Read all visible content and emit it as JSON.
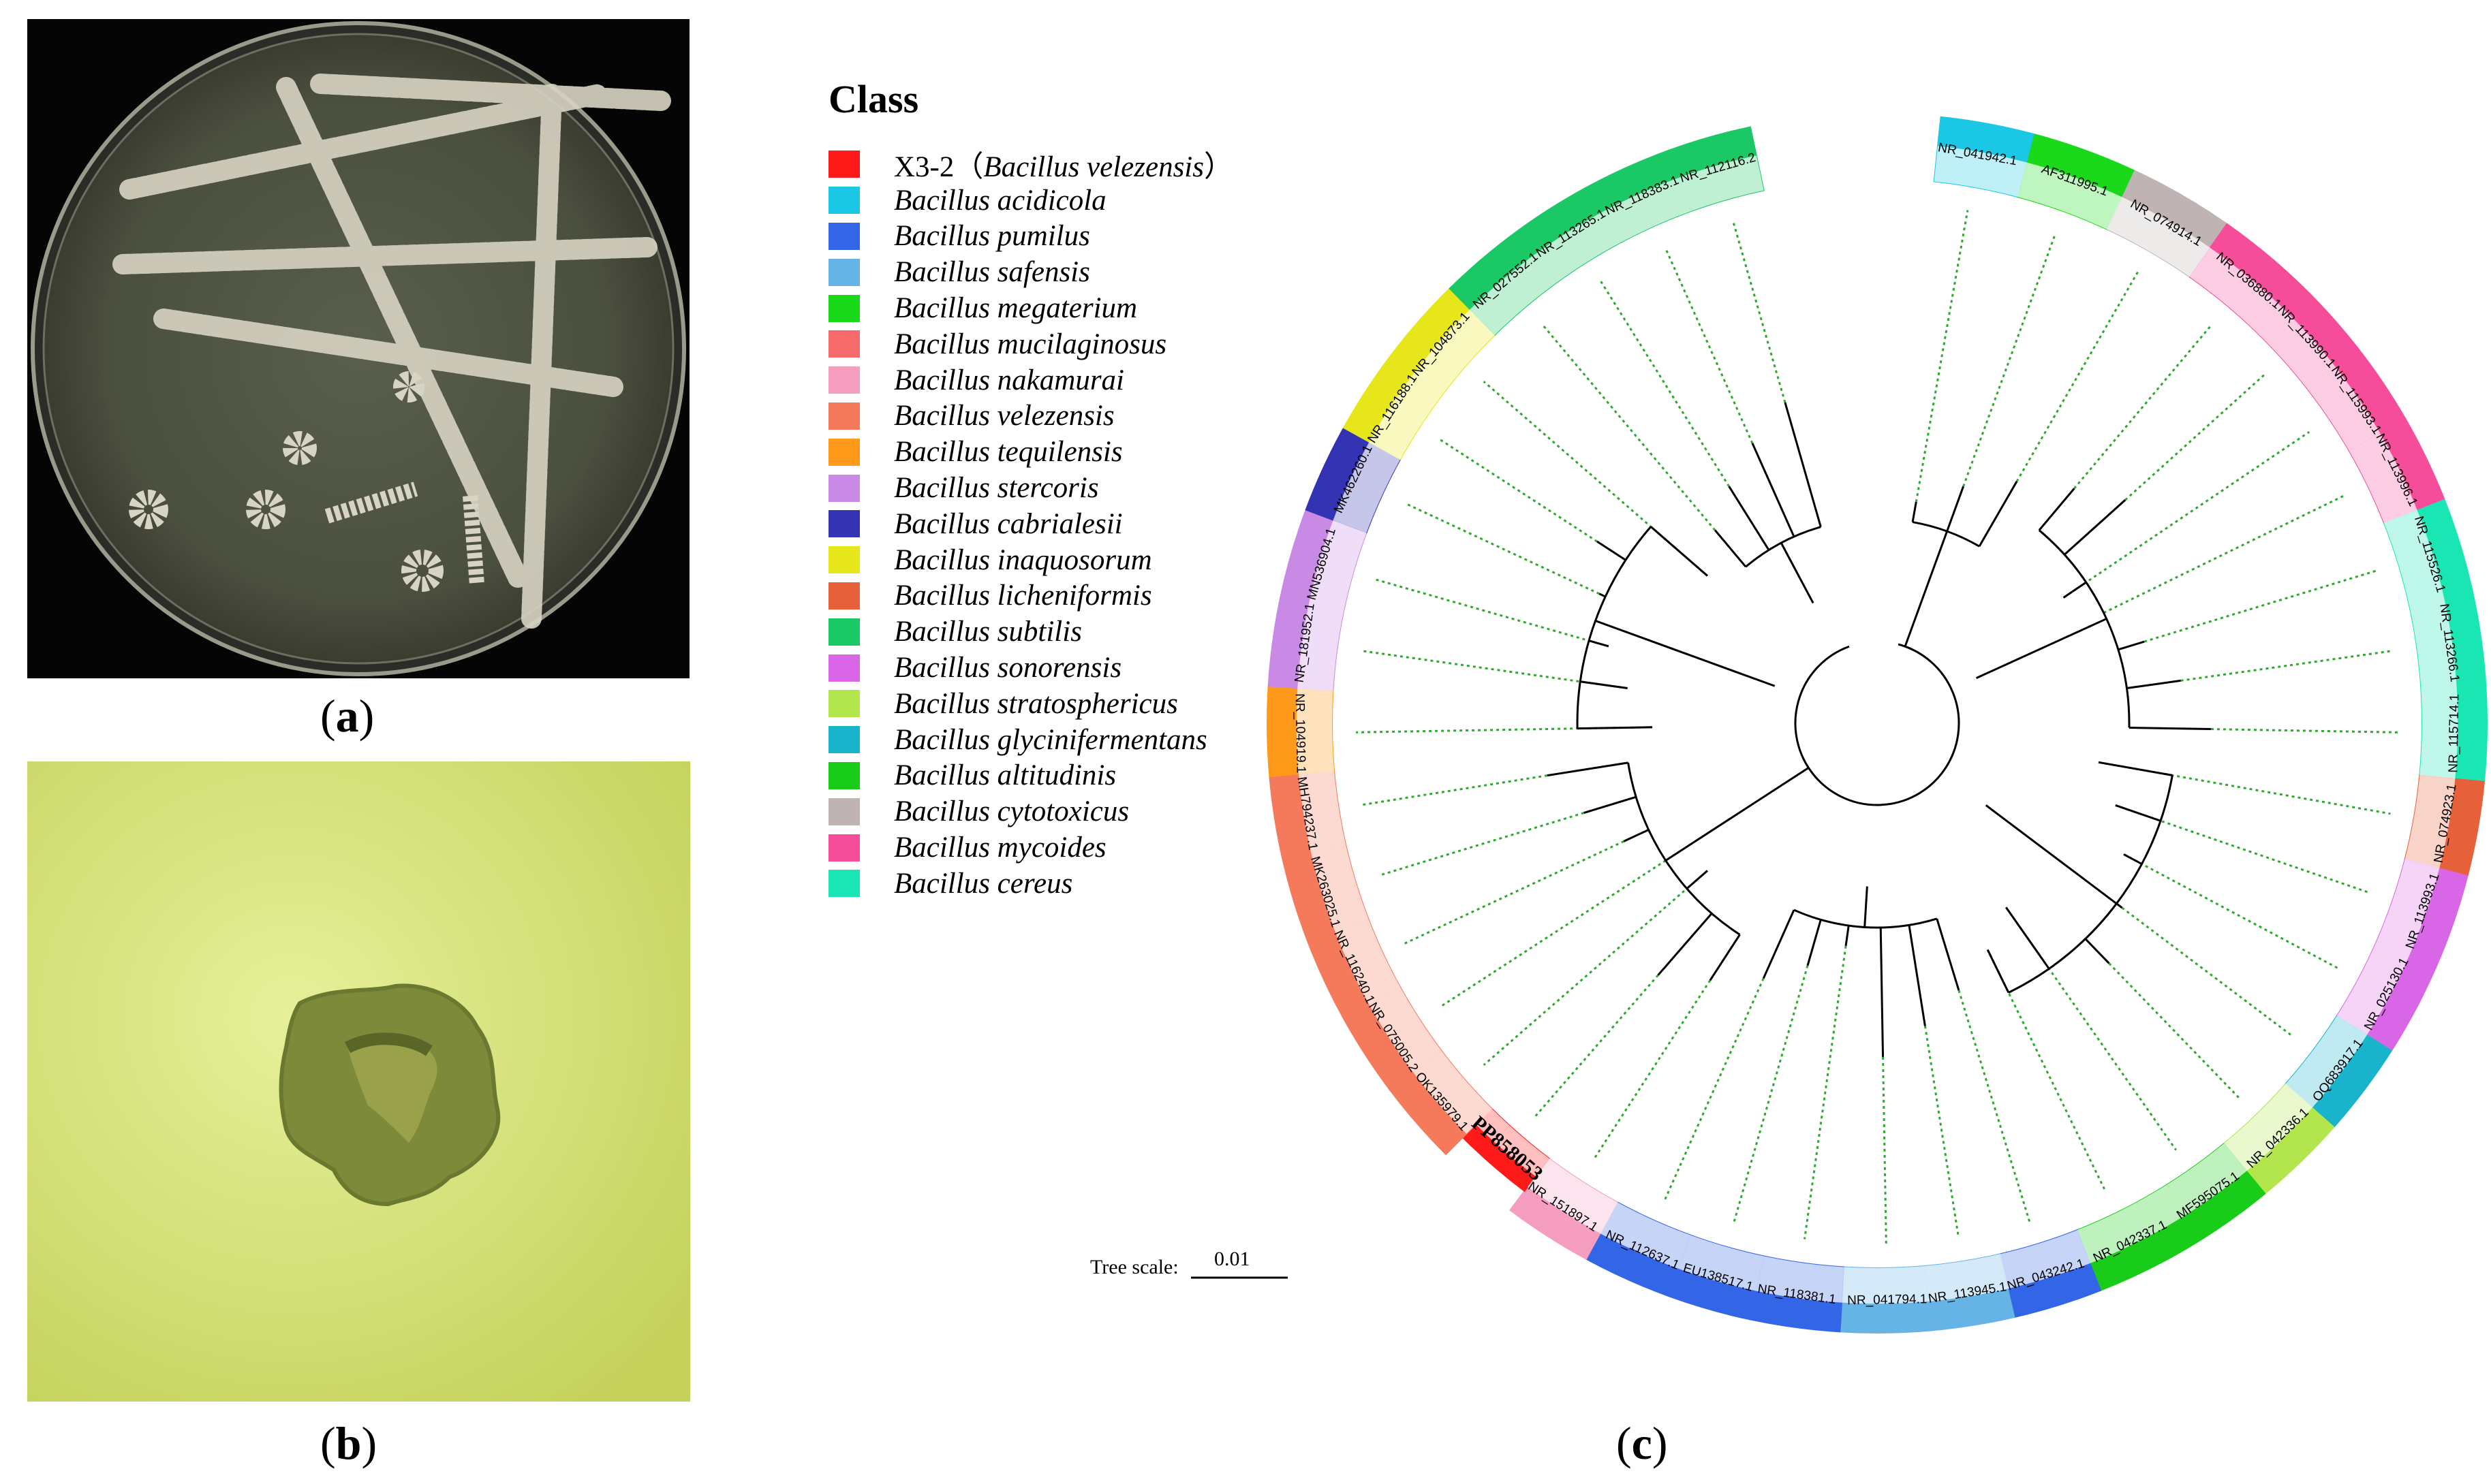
{
  "panels": {
    "a_label": "a",
    "b_label": "b",
    "c_label": "c"
  },
  "legend": {
    "title": "Class",
    "items": [
      {
        "label": "X3-2（",
        "italic_part": "Bacillus velezensis",
        "suffix": "）",
        "color": "#ff1a1a"
      },
      {
        "label": "Bacillus acidicola",
        "color": "#1ac8e6"
      },
      {
        "label": "Bacillus pumilus",
        "color": "#3366e6"
      },
      {
        "label": "Bacillus safensis",
        "color": "#66b3e6"
      },
      {
        "label": "Bacillus megaterium",
        "color": "#1ad91a"
      },
      {
        "label": "Bacillus mucilaginosus",
        "color": "#f56b6b"
      },
      {
        "label": "Bacillus nakamurai",
        "color": "#f59ec0"
      },
      {
        "label": "Bacillus velezensis",
        "color": "#f57a5c"
      },
      {
        "label": "Bacillus tequilensis",
        "color": "#ff9919"
      },
      {
        "label": "Bacillus stercoris",
        "color": "#c98ae6"
      },
      {
        "label": "Bacillus cabrialesii",
        "color": "#3333b3"
      },
      {
        "label": "Bacillus inaquosorum",
        "color": "#e6e61a"
      },
      {
        "label": "Bacillus licheniformis",
        "color": "#e6603a"
      },
      {
        "label": "Bacillus subtilis",
        "color": "#1ac866"
      },
      {
        "label": "Bacillus sonorensis",
        "color": "#d966e6"
      },
      {
        "label": "Bacillus stratosphericus",
        "color": "#b3e64d"
      },
      {
        "label": "Bacillus glycinifermentans",
        "color": "#1ab3cc"
      },
      {
        "label": "Bacillus altitudinis",
        "color": "#1acc1a"
      },
      {
        "label": "Bacillus cytotoxicus",
        "color": "#bfb3b3"
      },
      {
        "label": "Bacillus mycoides",
        "color": "#f54d99"
      },
      {
        "label": "Bacillus cereus",
        "color": "#1ae6b3"
      }
    ]
  },
  "tree": {
    "scale_label": "Tree scale:",
    "scale_value": "0.01",
    "highlight_label": "PP858053",
    "leaves": [
      {
        "label": "NR_041942.1",
        "color": "#1ac8e6",
        "angle": -80
      },
      {
        "label": "AF311995.1",
        "color": "#1ad91a",
        "angle": -70
      },
      {
        "label": "NR_074914.1",
        "color": "#bfb3b3",
        "angle": -60
      },
      {
        "label": "NR_036880.1",
        "color": "#f54d99",
        "angle": -50
      },
      {
        "label": "NR_113990.1",
        "color": "#f54d99",
        "angle": -42
      },
      {
        "label": "NR_115993.1",
        "color": "#f54d99",
        "angle": -34
      },
      {
        "label": "NR_113996.1",
        "color": "#f54d99",
        "angle": -26
      },
      {
        "label": "NR_115526.1",
        "color": "#1ae6b3",
        "angle": -17
      },
      {
        "label": "NR_113266.1",
        "color": "#1ae6b3",
        "angle": -8
      },
      {
        "label": "NR_115714.1",
        "color": "#1ae6b3",
        "angle": 1
      },
      {
        "label": "NR_074923.1",
        "color": "#e6603a",
        "angle": 10
      },
      {
        "label": "NR_113993.1",
        "color": "#d966e6",
        "angle": 19
      },
      {
        "label": "NR_025130.1",
        "color": "#d966e6",
        "angle": 28
      },
      {
        "label": "OQ683917.1",
        "color": "#1ab3cc",
        "angle": 37
      },
      {
        "label": "NR_042336.1",
        "color": "#b3e64d",
        "angle": 46
      },
      {
        "label": "MF595075.1",
        "color": "#1acc1a",
        "angle": 55
      },
      {
        "label": "NR_042337.1",
        "color": "#1acc1a",
        "angle": 64
      },
      {
        "label": "NR_043242.1",
        "color": "#3366e6",
        "angle": 73
      },
      {
        "label": "NR_113945.1",
        "color": "#66b3e6",
        "angle": 81
      },
      {
        "label": "NR_041794.1",
        "color": "#66b3e6",
        "angle": 89
      },
      {
        "label": "NR_118381.1",
        "color": "#3366e6",
        "angle": 98
      },
      {
        "label": "EU138517.1",
        "color": "#3366e6",
        "angle": 106
      },
      {
        "label": "NR_112637.1",
        "color": "#3366e6",
        "angle": 114
      },
      {
        "label": "NR_151897.1",
        "color": "#f59ec0",
        "angle": 123
      },
      {
        "label": "PP858053",
        "color": "#ff1a1a",
        "angle": 131,
        "highlight": true
      },
      {
        "label": "OK135979.1",
        "color": "#f57a5c",
        "angle": 139
      },
      {
        "label": "NR_075005.2",
        "color": "#f57a5c",
        "angle": 147
      },
      {
        "label": "NR_116240.1",
        "color": "#f57a5c",
        "angle": 155
      },
      {
        "label": "MK263025.1",
        "color": "#f57a5c",
        "angle": 163
      },
      {
        "label": "MH794237.1",
        "color": "#f57a5c",
        "angle": 171
      },
      {
        "label": "NR_104919.1",
        "color": "#ff9919",
        "angle": 179
      },
      {
        "label": "NR_181952.1",
        "color": "#c98ae6",
        "angle": 188
      },
      {
        "label": "MN536904.1",
        "color": "#c98ae6",
        "angle": 196
      },
      {
        "label": "MK462260.1",
        "color": "#3333b3",
        "angle": 205
      },
      {
        "label": "NR_116188.1",
        "color": "#e6e61a",
        "angle": 213
      },
      {
        "label": "NR_104873.1",
        "color": "#e6e61a",
        "angle": 221
      },
      {
        "label": "NR_027552.1",
        "color": "#1ac866",
        "angle": 230
      },
      {
        "label": "NR_113265.1",
        "color": "#1ac866",
        "angle": 238
      },
      {
        "label": "NR_118383.1",
        "color": "#1ac866",
        "angle": 246
      },
      {
        "label": "NR_112116.2",
        "color": "#1ac866",
        "angle": 254
      }
    ]
  }
}
